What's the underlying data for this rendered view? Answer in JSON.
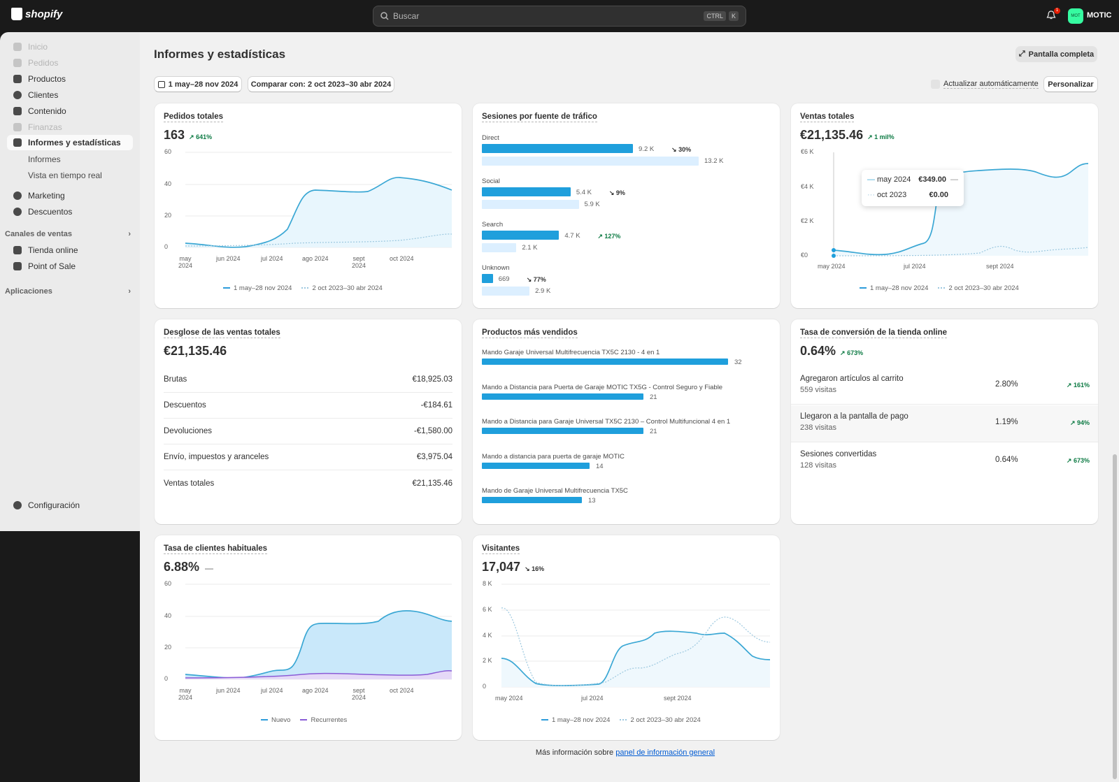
{
  "topbar": {
    "brand": "shopify",
    "search_placeholder": "Buscar",
    "kbd1": "CTRL",
    "kbd2": "K",
    "notif_count": "1",
    "avatar_initials": "MOT",
    "store": "MOTIC"
  },
  "sidebar": {
    "items": [
      {
        "label": "Inicio"
      },
      {
        "label": "Pedidos"
      },
      {
        "label": "Productos"
      },
      {
        "label": "Clientes"
      },
      {
        "label": "Contenido"
      },
      {
        "label": "Finanzas"
      },
      {
        "label": "Informes y estadísticas"
      },
      {
        "label": "Informes"
      },
      {
        "label": "Vista en tiempo real"
      },
      {
        "label": "Marketing"
      },
      {
        "label": "Descuentos"
      }
    ],
    "sales_channels_title": "Canales de ventas",
    "channels": [
      {
        "label": "Tienda online"
      },
      {
        "label": "Point of Sale"
      }
    ],
    "apps_title": "Aplicaciones",
    "settings": "Configuración"
  },
  "page": {
    "title": "Informes y estadísticas",
    "fullscreen": "Pantalla completa",
    "date_range": "1 may–28 nov 2024",
    "compare": "Comparar con: 2 oct 2023–30 abr 2024",
    "auto_update": "Actualizar automáticamente",
    "customize": "Personalizar"
  },
  "cards": {
    "orders": {
      "title": "Pedidos totales",
      "value": "163",
      "delta": "641%",
      "y_ticks": [
        "60",
        "40",
        "20",
        "0"
      ],
      "x_ticks": [
        "may\n2024",
        "jun 2024",
        "jul 2024",
        "ago 2024",
        "sept\n2024",
        "oct 2024"
      ],
      "legend1": "1 may–28 nov 2024",
      "legend2": "2 oct 2023–30 abr 2024"
    },
    "sessions": {
      "title": "Sesiones por fuente de tráfico"
    },
    "sales": {
      "title": "Ventas totales",
      "value": "€21,135.46",
      "delta": "1 mil%",
      "y_ticks": [
        "€6 K",
        "€4 K",
        "€2 K",
        "€0"
      ],
      "x_ticks": [
        "may 2024",
        "jul 2024",
        "sept 2024"
      ],
      "tooltip_l1": "may 2024",
      "tooltip_v1": "€349.00",
      "tooltip_l2": "oct 2023",
      "tooltip_v2": "€0.00",
      "legend1": "1 may–28 nov 2024",
      "legend2": "2 oct 2023–30 abr 2024"
    },
    "breakdown": {
      "title": "Desglose de las ventas totales",
      "value": "€21,135.46",
      "rows": [
        {
          "label": "Brutas",
          "value": "€18,925.03"
        },
        {
          "label": "Descuentos",
          "value": "-€184.61"
        },
        {
          "label": "Devoluciones",
          "value": "-€1,580.00"
        },
        {
          "label": "Envío, impuestos y aranceles",
          "value": "€3,975.04"
        },
        {
          "label": "Ventas totales",
          "value": "€21,135.46"
        }
      ]
    },
    "products": {
      "title": "Productos más vendidos"
    },
    "conversion": {
      "title": "Tasa de conversión de la tienda online",
      "value": "0.64%",
      "delta": "673%",
      "rows": [
        {
          "name": "Agregaron artículos al carrito",
          "visits": "559 visitas",
          "pct": "2.80%",
          "delta": "161%"
        },
        {
          "name": "Llegaron a la pantalla de pago",
          "visits": "238 visitas",
          "pct": "1.19%",
          "delta": "94%"
        },
        {
          "name": "Sesiones convertidas",
          "visits": "128 visitas",
          "pct": "0.64%",
          "delta": "673%"
        }
      ]
    },
    "returning": {
      "title": "Tasa de clientes habituales",
      "value": "6.88%",
      "delta": "—",
      "y_ticks": [
        "60",
        "40",
        "20",
        "0"
      ],
      "x_ticks": [
        "may\n2024",
        "jun 2024",
        "jul 2024",
        "ago 2024",
        "sept\n2024",
        "oct 2024"
      ],
      "legend1": "Nuevo",
      "legend2": "Recurrentes"
    },
    "visitors": {
      "title": "Visitantes",
      "value": "17,047",
      "delta": "16%",
      "y_ticks": [
        "8 K",
        "6 K",
        "4 K",
        "2 K",
        "0"
      ],
      "x_ticks": [
        "may 2024",
        "jul 2024",
        "sept 2024"
      ],
      "legend1": "1 may–28 nov 2024",
      "legend2": "2 oct 2023–30 abr 2024"
    }
  },
  "footer": {
    "text": "Más información sobre ",
    "link": "panel de información general"
  },
  "chart_data": [
    {
      "type": "bar",
      "title": "Sesiones por fuente de tráfico",
      "categories": [
        "Direct",
        "Social",
        "Search",
        "Unknown"
      ],
      "series": [
        {
          "name": "1 may–28 nov 2024",
          "values": [
            9200,
            5400,
            4700,
            669
          ],
          "labels": [
            "9.2 K",
            "5.4 K",
            "4.7 K",
            "669"
          ]
        },
        {
          "name": "2 oct 2023–30 abr 2024",
          "values": [
            13200,
            5900,
            2100,
            2900
          ],
          "labels": [
            "13.2 K",
            "5.9 K",
            "2.1 K",
            "2.9 K"
          ]
        }
      ],
      "deltas": [
        "30%",
        "9%",
        "127%",
        "77%"
      ]
    },
    {
      "type": "bar",
      "title": "Productos más vendidos",
      "categories": [
        "Mando Garaje Universal Multifrecuencia TX5C 2130 - 4 en 1",
        "Mando a Distancia para Puerta de Garaje MOTIC TX5G - Control Seguro y Fiable",
        "Mando a Distancia para Garaje Universal TX5C 2130 – Control Multifuncional 4 en 1",
        "Mando a distancia para puerta de garaje MOTIC",
        "Mando de Garaje Universal Multifrecuencia TX5C"
      ],
      "values": [
        32,
        21,
        21,
        14,
        13
      ]
    }
  ]
}
